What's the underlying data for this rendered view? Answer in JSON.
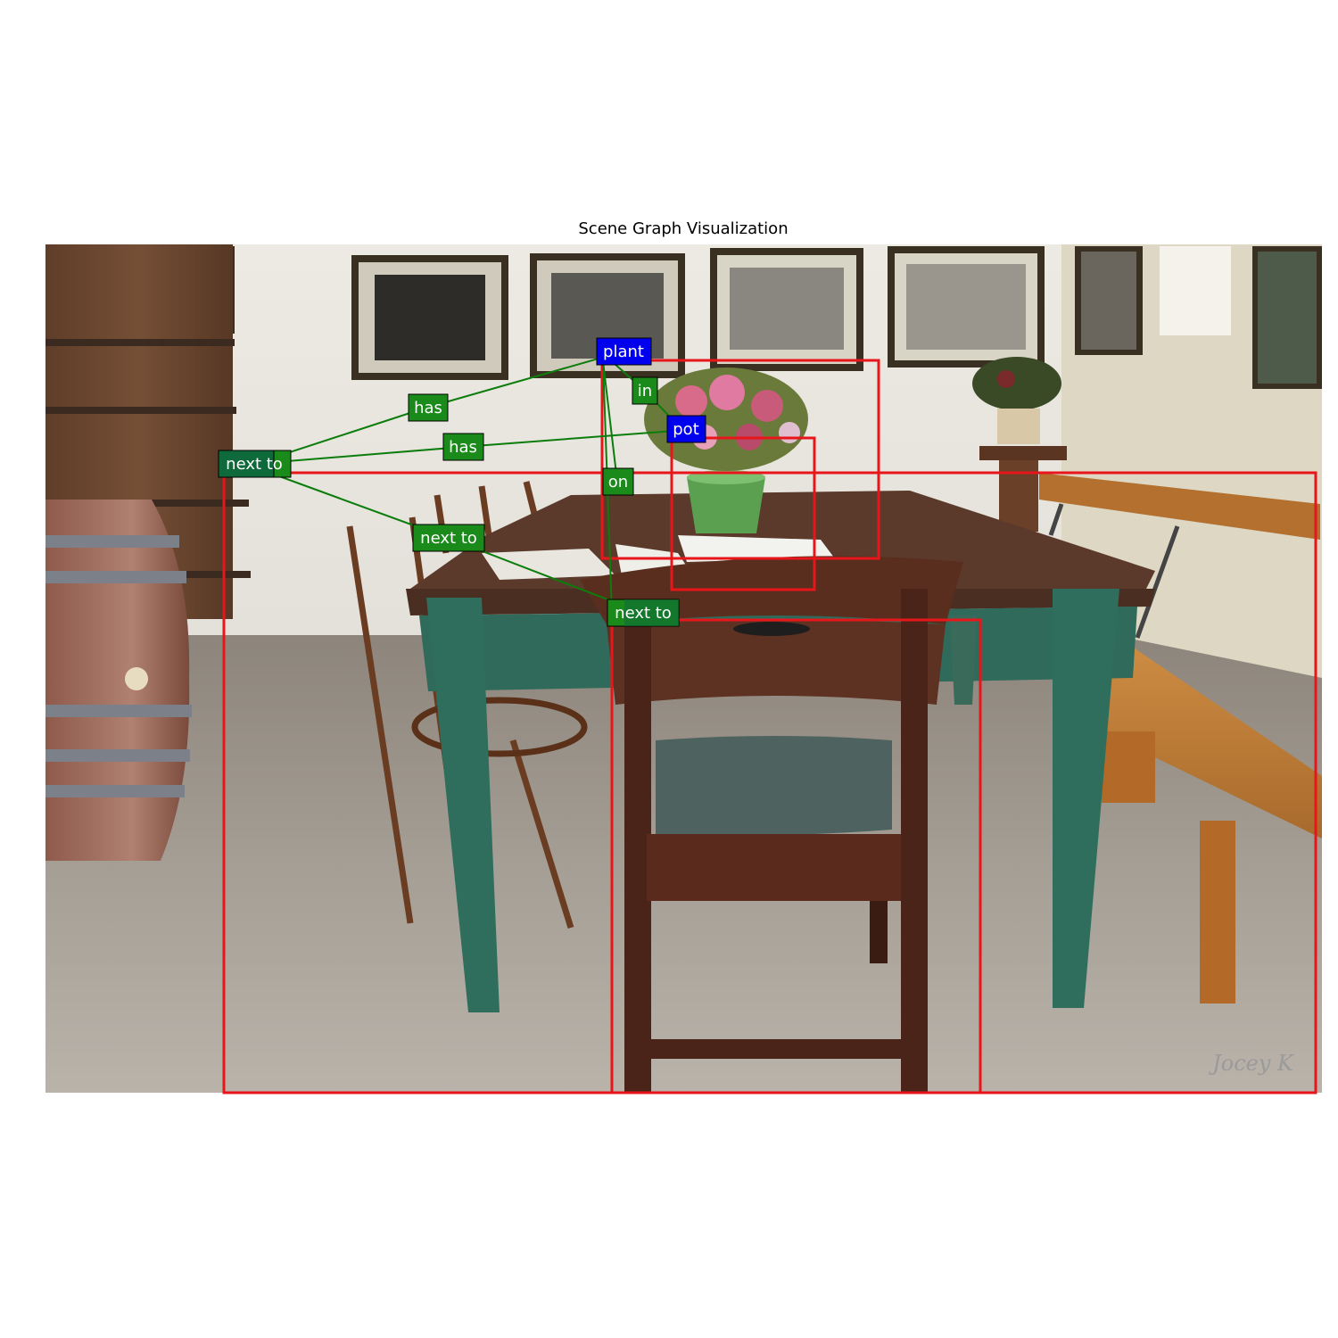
{
  "title": "Scene Graph Visualization",
  "watermark": "Jocey K",
  "colors": {
    "bbox": "#e8161a",
    "edge": "#0c7d0c",
    "object_node": "#0000ee",
    "predicate_node": "#1a8a1a",
    "predicate_node_dark": "#0e6a3a"
  },
  "scene_graph": {
    "objects": [
      {
        "id": "plant",
        "label": "plant"
      },
      {
        "id": "pot",
        "label": "pot"
      },
      {
        "id": "table",
        "label": ""
      },
      {
        "id": "chair",
        "label": ""
      }
    ],
    "predicates": [
      {
        "id": "p_in",
        "label": "in",
        "subject": "plant",
        "object": "pot"
      },
      {
        "id": "p_has1",
        "label": "has",
        "subject": "table",
        "object": "plant"
      },
      {
        "id": "p_has2",
        "label": "has",
        "subject": "table",
        "object": "pot"
      },
      {
        "id": "p_on",
        "label": "on",
        "subject": "plant",
        "object": "table"
      },
      {
        "id": "p_next1",
        "label": "next to",
        "subject": "table",
        "object": "chair"
      },
      {
        "id": "p_next2",
        "label": "next to",
        "subject": "chair",
        "object": "table"
      },
      {
        "id": "p_next3",
        "label": "next to",
        "subject": "table",
        "object": "chair"
      }
    ]
  }
}
